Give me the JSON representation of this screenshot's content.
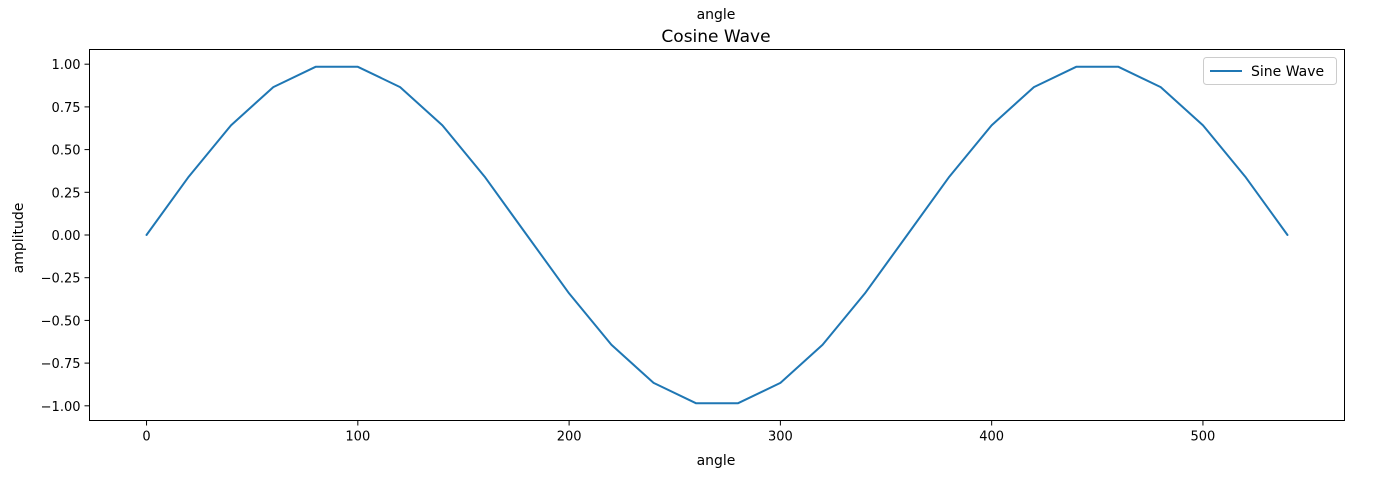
{
  "chart_data": {
    "type": "line",
    "top_label": "angle",
    "title": "Cosine Wave",
    "xlabel": "angle",
    "ylabel": "amplitude",
    "xlim": [
      -27,
      567
    ],
    "ylim": [
      -1.086,
      1.086
    ],
    "x_ticks": [
      0,
      100,
      200,
      300,
      400,
      500
    ],
    "x_tick_labels": [
      "0",
      "100",
      "200",
      "300",
      "400",
      "500"
    ],
    "y_ticks": [
      1.0,
      0.75,
      0.5,
      0.25,
      0.0,
      -0.25,
      -0.5,
      -0.75,
      -1.0
    ],
    "y_tick_labels": [
      "1.00",
      "0.75",
      "0.50",
      "0.25",
      "0.00",
      "−0.25",
      "−0.50",
      "−0.75",
      "−1.00"
    ],
    "grid": false,
    "legend": {
      "position": "top-right",
      "entries": [
        "Sine Wave"
      ]
    },
    "series": [
      {
        "name": "Sine Wave",
        "color": "#1f77b4",
        "x": [
          0,
          20,
          40,
          60,
          80,
          100,
          120,
          140,
          160,
          180,
          200,
          220,
          240,
          260,
          280,
          300,
          320,
          340,
          360,
          380,
          400,
          420,
          440,
          460,
          480,
          500,
          520,
          540
        ],
        "y": [
          0.0,
          0.342,
          0.643,
          0.866,
          0.985,
          0.985,
          0.866,
          0.643,
          0.342,
          0.0,
          -0.342,
          -0.643,
          -0.866,
          -0.985,
          -0.985,
          -0.866,
          -0.643,
          -0.342,
          0.0,
          0.342,
          0.643,
          0.866,
          0.985,
          0.985,
          0.866,
          0.643,
          0.342,
          0.0
        ]
      }
    ]
  }
}
